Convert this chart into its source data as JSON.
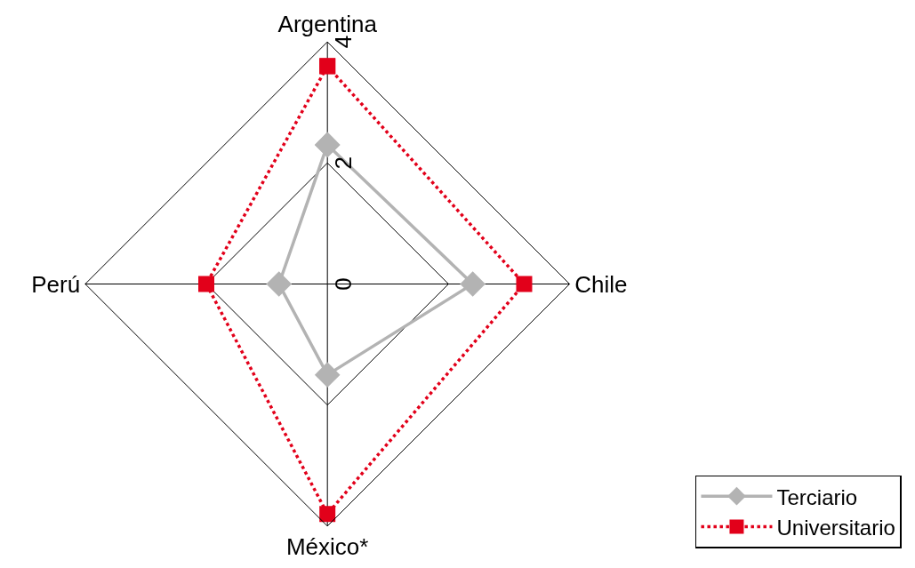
{
  "chart_data": {
    "type": "radar",
    "categories": [
      "Argentina",
      "Chile",
      "México*",
      "Perú"
    ],
    "series": [
      {
        "name": "Terciario",
        "color": "#b3b3b3",
        "values": [
          2.3,
          2.4,
          1.5,
          0.8
        ],
        "marker": "diamond",
        "line_style": "solid"
      },
      {
        "name": "Universitario",
        "color": "#e2001a",
        "values": [
          3.6,
          3.25,
          3.8,
          2.0
        ],
        "marker": "square",
        "line_style": "dotted"
      }
    ],
    "ylim": [
      0,
      4
    ],
    "yticks": [
      0,
      2,
      4
    ],
    "grid": true,
    "legend": "bottom right"
  }
}
